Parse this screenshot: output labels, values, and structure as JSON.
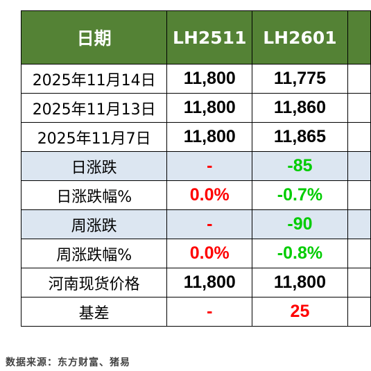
{
  "table": {
    "header": {
      "date": "日期",
      "col_a": "LH2511",
      "col_b": "LH2601",
      "col_c": ""
    },
    "rows": [
      {
        "label": "2025年11月14日",
        "a": "11,800",
        "b": "11,775",
        "c": ""
      },
      {
        "label": "2025年11月13日",
        "a": "11,800",
        "b": "11,860",
        "c": ""
      },
      {
        "label": "2025年11月7日",
        "a": "11,800",
        "b": "11,865",
        "c": ""
      },
      {
        "label": "日涨跌",
        "a": "-",
        "b": "-85",
        "c": ""
      },
      {
        "label": "日涨跌幅%",
        "a": "0.0%",
        "b": "-0.7%",
        "c": ""
      },
      {
        "label": "周涨跌",
        "a": "-",
        "b": "-90",
        "c": ""
      },
      {
        "label": "周涨跌幅%",
        "a": "0.0%",
        "b": "-0.8%",
        "c": ""
      },
      {
        "label": "河南现货价格",
        "a": "11,800",
        "b": "11,800",
        "c": ""
      },
      {
        "label": "基差",
        "a": "-",
        "b": "25",
        "c": ""
      }
    ]
  },
  "footer": {
    "source": "数据来源：东方财富、猪易"
  },
  "colors": {
    "header_bg": "#548235",
    "header_text": "#ffffff",
    "shaded_row_bg": "#dce6f1",
    "up_red": "#ff0000",
    "down_green": "#00cc00"
  }
}
